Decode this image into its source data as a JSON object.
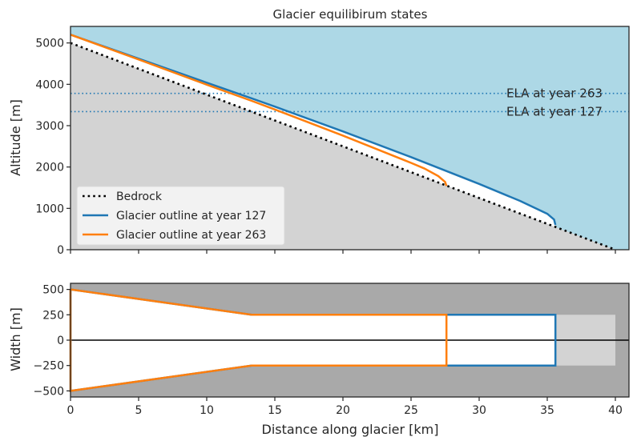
{
  "chart_data": [
    {
      "type": "line",
      "title": "Glacier equilibirum states",
      "xlabel": "",
      "ylabel": "Altitude [m]",
      "xlim": [
        0,
        41
      ],
      "ylim": [
        0,
        5400
      ],
      "yticks": [
        0,
        1000,
        2000,
        3000,
        4000,
        5000
      ],
      "xticks": [
        0,
        5,
        10,
        15,
        20,
        25,
        30,
        35,
        40
      ],
      "grid": false,
      "legend_position": "lower-left",
      "colors": {
        "sky": "#add8e6",
        "ground": "#d3d3d3",
        "bedrock": "#000000",
        "year127": "#1f77b4",
        "year263": "#ff7f0e"
      },
      "annotations": [
        {
          "text": "ELA at year 263",
          "x": 32,
          "y": 3780
        },
        {
          "text": "ELA at year 127",
          "x": 32,
          "y": 3340
        }
      ],
      "hlines": [
        {
          "y": 3780,
          "style": "dotted",
          "color": "#1f77b4"
        },
        {
          "y": 3340,
          "style": "dotted",
          "color": "#1f77b4"
        }
      ],
      "series": [
        {
          "name": "Bedrock",
          "style": "dotted",
          "x": [
            0,
            40
          ],
          "y": [
            5000,
            0
          ]
        },
        {
          "name": "Glacier outline at year 127",
          "x": [
            0,
            5,
            10,
            13.3,
            15,
            20,
            25,
            30,
            33,
            35,
            35.5,
            35.6
          ],
          "y": [
            5200,
            4620,
            4040,
            3660,
            3460,
            2860,
            2240,
            1590,
            1180,
            870,
            730,
            600
          ]
        },
        {
          "name": "Glacier outline at year 263",
          "x": [
            0,
            5,
            10,
            13.3,
            15,
            20,
            25,
            26,
            27,
            27.5,
            27.6
          ],
          "y": [
            5200,
            4600,
            3990,
            3600,
            3390,
            2760,
            2100,
            1960,
            1780,
            1640,
            1540
          ]
        }
      ]
    },
    {
      "type": "line",
      "title": "",
      "xlabel": "Distance along glacier [km]",
      "ylabel": "Width [m]",
      "xlim": [
        0,
        41
      ],
      "ylim": [
        -560,
        560
      ],
      "yticks": [
        500,
        250,
        0,
        -250,
        -500
      ],
      "ytick_labels": [
        "500",
        "250",
        "0",
        "−250",
        "−500"
      ],
      "xticks": [
        0,
        5,
        10,
        15,
        20,
        25,
        30,
        35,
        40
      ],
      "grid": false,
      "colors": {
        "background": "#a9a9a9",
        "bed_width": "#d3d3d3",
        "fill": "#ffffff",
        "year127": "#1f77b4",
        "year263": "#ff7f0e"
      },
      "bed_outline": {
        "x": [
          0,
          13.3,
          40,
          40,
          13.3,
          0
        ],
        "y": [
          500,
          250,
          250,
          -250,
          -250,
          -500
        ]
      },
      "series": [
        {
          "name": "Glacier outline at year 127",
          "x": [
            0,
            13.3,
            35.6,
            35.6,
            13.3,
            0,
            0
          ],
          "y": [
            500,
            250,
            250,
            -250,
            -250,
            -500,
            500
          ]
        },
        {
          "name": "Glacier outline at year 263",
          "x": [
            0,
            13.3,
            27.6,
            27.6,
            13.3,
            0,
            0
          ],
          "y": [
            500,
            250,
            250,
            -250,
            -250,
            -500,
            500
          ]
        }
      ]
    }
  ]
}
